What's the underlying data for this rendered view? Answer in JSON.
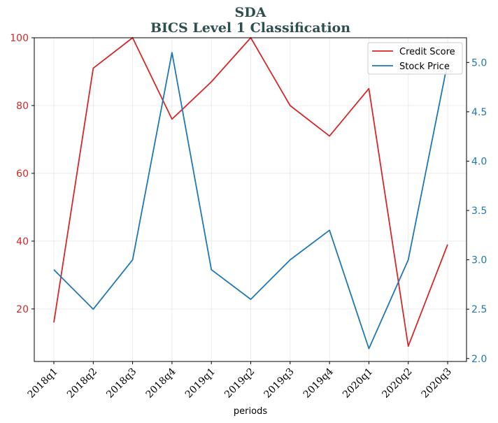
{
  "chart_data": {
    "type": "line",
    "title": "SDA",
    "subtitle": "BICS Level 1 Classification",
    "xlabel": "periods",
    "categories": [
      "2018q1",
      "2018q2",
      "2018q3",
      "2018q4",
      "2019q1",
      "2019q2",
      "2019q3",
      "2019q4",
      "2020q1",
      "2020q2",
      "2020q3"
    ],
    "left_axis": {
      "ylim": [
        4.5,
        100
      ],
      "ticks": [
        20,
        40,
        60,
        80,
        100
      ],
      "color": "#d62728"
    },
    "right_axis": {
      "ylim": [
        1.97,
        5.25
      ],
      "ticks": [
        "2.0",
        "2.5",
        "3.0",
        "3.5",
        "4.0",
        "4.5",
        "5.0"
      ],
      "color": "#1f77b4"
    },
    "series": [
      {
        "name": "Credit Score",
        "axis": "left",
        "color": "#d62728",
        "values": [
          16,
          91,
          100,
          76,
          87,
          100,
          80,
          71,
          85,
          9,
          39
        ]
      },
      {
        "name": "Stock Price",
        "axis": "right",
        "color": "#1f77b4",
        "values": [
          2.9,
          2.5,
          3.0,
          5.1,
          2.9,
          2.6,
          3.0,
          3.3,
          2.1,
          3.0,
          5.0
        ]
      }
    ],
    "legend": "top-right",
    "grid": true
  }
}
